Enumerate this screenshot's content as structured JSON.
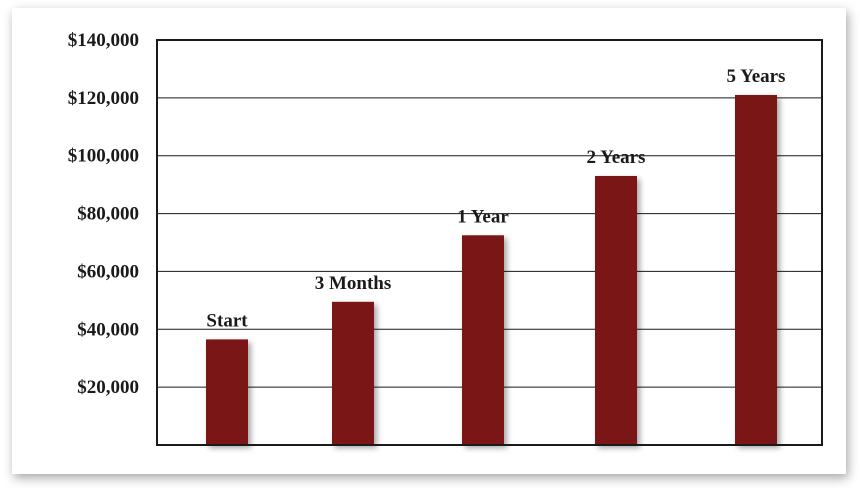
{
  "chart_data": {
    "type": "bar",
    "title": "",
    "xlabel": "",
    "ylabel": "",
    "categories": [
      "Start",
      "3 Months",
      "1 Year",
      "2 Years",
      "5 Years"
    ],
    "values": [
      36500,
      49500,
      72500,
      93000,
      121000
    ],
    "data_labels": [
      "Start",
      "3 Months",
      "1 Year",
      "2 Years",
      "5 Years"
    ],
    "ylim": [
      0,
      140000
    ],
    "yticks": [
      20000,
      40000,
      60000,
      80000,
      100000,
      120000,
      140000
    ],
    "ytick_labels": [
      "$20,000",
      "$40,000",
      "$60,000",
      "$80,000",
      "$100,000",
      "$120,000",
      "$140,000"
    ],
    "grid": true,
    "legend": "none",
    "colors": {
      "bar": "#7a1517",
      "grid": "#1a1a1a",
      "axis": "#1a1a1a"
    }
  }
}
